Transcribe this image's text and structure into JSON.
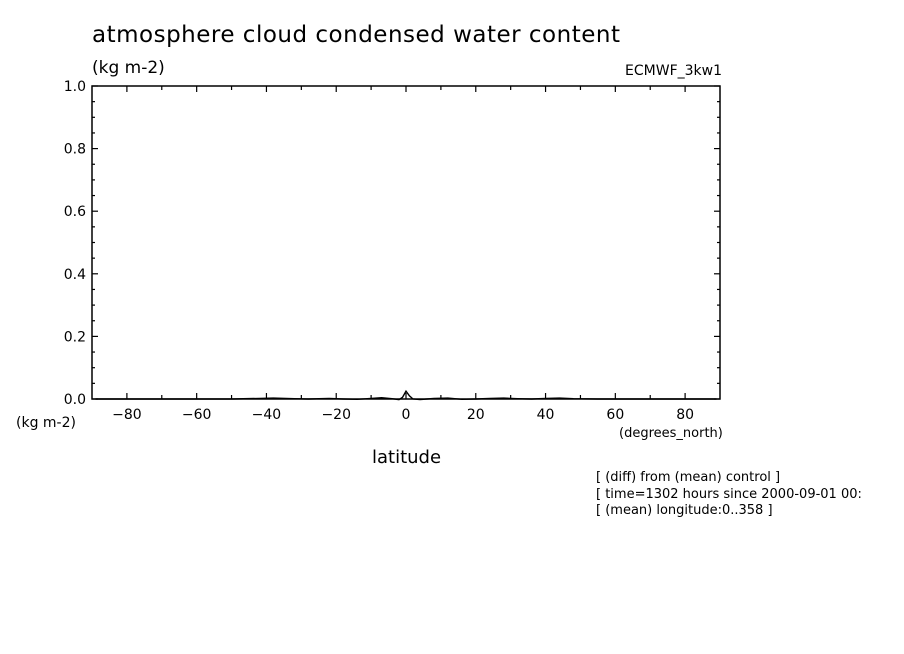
{
  "title": "atmosphere cloud condensed water content",
  "units_label": "(kg m-2)",
  "run_label": "ECMWF_3kw1",
  "y_units_label": "(kg m-2)",
  "x_units_label": "(degrees_north)",
  "x_axis_label": "latitude",
  "notes": [
    "[ (diff) from (mean) control ]",
    "[ time=1302 hours since 2000-09-01 00:",
    "[ (mean) longitude:0..358 ]"
  ],
  "chart_data": {
    "type": "line",
    "title": "atmosphere cloud condensed water content",
    "xlabel": "latitude",
    "ylabel": "(kg m-2)",
    "xlim": [
      -90,
      90
    ],
    "ylim": [
      0,
      1.0
    ],
    "x_ticks": [
      -80,
      -60,
      -40,
      -20,
      0,
      20,
      40,
      60,
      80
    ],
    "y_ticks": [
      0.0,
      0.2,
      0.4,
      0.6,
      0.8,
      1.0
    ],
    "y_tick_labels": [
      "0.0",
      "0.2",
      "0.4",
      "0.6",
      "0.8",
      "1.0"
    ],
    "grid": false,
    "series": [
      {
        "x": [
          -89,
          -80,
          -70,
          -60,
          -50,
          -42,
          -38,
          -32,
          -28,
          -22,
          -18,
          -14,
          -10,
          -7,
          -4,
          -2,
          -1,
          0,
          1,
          2,
          4,
          6,
          8,
          12,
          16,
          20,
          24,
          28,
          32,
          36,
          40,
          44,
          48,
          55,
          60,
          70,
          80,
          89
        ],
        "y": [
          0.0,
          0.0,
          0.0,
          0.0,
          0.0,
          0.002,
          0.003,
          0.001,
          0.0,
          0.002,
          0.0,
          -0.001,
          0.002,
          0.004,
          0.001,
          -0.002,
          0.005,
          0.025,
          0.01,
          0.0,
          -0.002,
          0.0,
          0.002,
          0.003,
          -0.001,
          0.0,
          0.002,
          0.003,
          0.001,
          0.0,
          0.002,
          0.003,
          0.001,
          0.0,
          0.0,
          0.0,
          0.0,
          0.0
        ]
      }
    ]
  }
}
